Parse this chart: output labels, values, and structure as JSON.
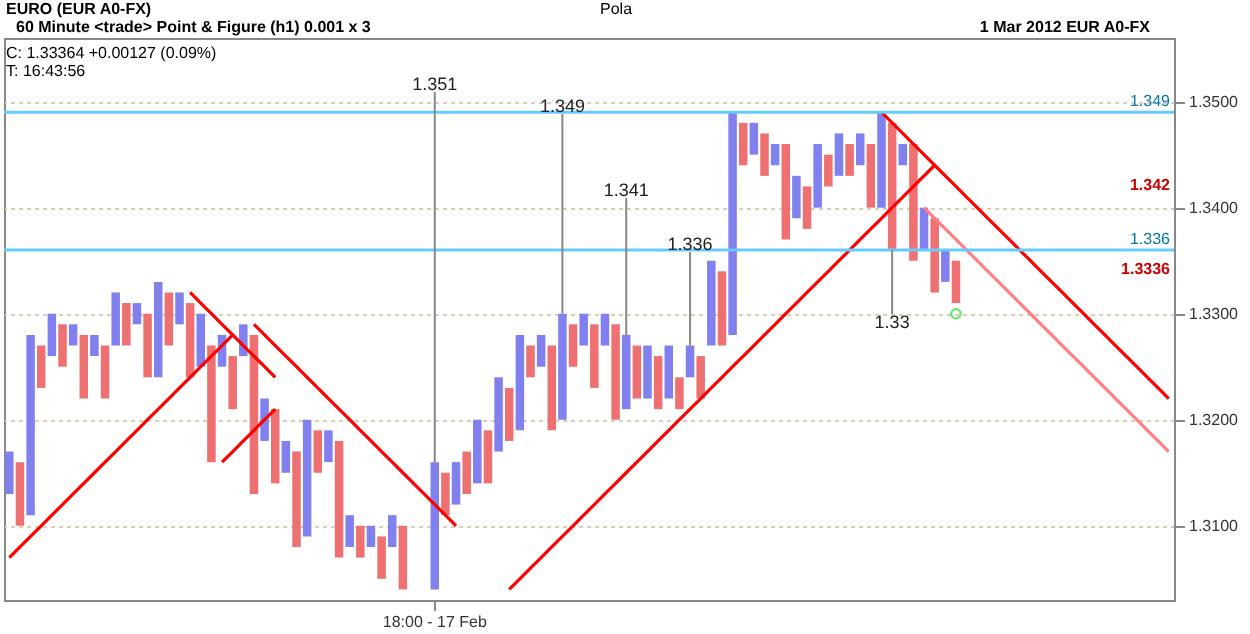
{
  "chart_data": {
    "type": "bar",
    "title": "EURO (EUR A0-FX)",
    "subtitle": "60 Minute <trade> Point & Figure (h1) 0.001 x 3",
    "annotations": [
      "Pola",
      "1 Mar 2012  EUR A0-FX",
      "C: 1.33364  +0.00127 (0.09%)",
      "T: 16:43:56",
      "1.351",
      "1.349",
      "1.341",
      "1.336",
      "1.33",
      "1.342",
      "1.3336"
    ],
    "categories": [
      null,
      null,
      null,
      null,
      null,
      null,
      null,
      null,
      null,
      null,
      null,
      null,
      null,
      null,
      null,
      null,
      null,
      null,
      null,
      null,
      null,
      null,
      null,
      null,
      null,
      null,
      null,
      null,
      null,
      null,
      null,
      null,
      null,
      null,
      null,
      null,
      null,
      null,
      null,
      null,
      "18:00 - 17 Feb",
      null,
      null,
      null,
      null,
      null,
      null,
      null,
      null,
      null,
      null,
      null,
      null,
      null,
      null,
      null,
      null,
      null,
      null,
      null,
      null,
      null,
      null,
      null,
      null,
      null,
      null,
      null,
      null,
      null,
      null,
      null,
      null,
      null,
      null,
      null,
      null,
      null,
      null,
      null,
      null,
      null,
      null,
      null,
      null,
      null,
      null,
      null,
      null,
      null,
      null,
      null,
      null,
      null,
      null,
      null,
      null,
      null,
      null,
      null,
      null,
      null,
      null,
      null,
      null,
      null,
      null,
      null,
      null,
      null
    ],
    "ylim": [
      1.303,
      1.356
    ],
    "yticks": [
      {
        "value": 1.31,
        "label": "1.3100"
      },
      {
        "value": 1.32,
        "label": "1.3200"
      },
      {
        "value": 1.33,
        "label": "1.3300"
      },
      {
        "value": 1.34,
        "label": "1.3400"
      },
      {
        "value": 1.35,
        "label": "1.3500"
      }
    ],
    "grid": "y",
    "ref_lines": [
      {
        "axis": "y",
        "value": 1.349,
        "label": "1.349",
        "color": "#66ccff"
      },
      {
        "axis": "y",
        "value": 1.336,
        "label": "1.336",
        "color": "#66ccff"
      }
    ],
    "series": [
      {
        "base": [
          1.313,
          1.31,
          1.311,
          1.323,
          1.326,
          1.325,
          1.327,
          1.322,
          1.326,
          1.322,
          1.327,
          1.327,
          1.329,
          1.324,
          1.324,
          1.327,
          1.329,
          1.324,
          1.325,
          1.316,
          1.325,
          1.321,
          1.326,
          1.313,
          1.318,
          1.314,
          1.315,
          1.308,
          1.309,
          1.315,
          1.316,
          1.307,
          1.308,
          1.307,
          1.308,
          1.305,
          1.308,
          1.304,
          null,
          null,
          1.304,
          1.311,
          1.312,
          1.313,
          1.314,
          1.314,
          1.317,
          1.318,
          1.319,
          1.324,
          1.325,
          1.319,
          1.32,
          1.325,
          1.327,
          1.323,
          1.327,
          1.32,
          1.321,
          1.322,
          1.322,
          1.321,
          1.322,
          1.321,
          1.324,
          1.322,
          1.327,
          1.327,
          1.328,
          1.344,
          1.345,
          1.343,
          1.344,
          1.337,
          1.339,
          1.338,
          1.34,
          1.342,
          1.343,
          1.343,
          1.344,
          1.34,
          1.34,
          1.336,
          1.344,
          1.335,
          1.336,
          1.332,
          1.333,
          1.331,
          null,
          null,
          null,
          null,
          null,
          null,
          null,
          null,
          null,
          null,
          null,
          null,
          null,
          null,
          null,
          null,
          null,
          null,
          null,
          null
        ],
        "values": [
          0.004,
          0.006,
          0.017,
          0.004,
          0.004,
          0.004,
          0.002,
          0.006,
          0.002,
          0.005,
          0.005,
          0.004,
          0.002,
          0.006,
          0.009,
          0.005,
          0.003,
          0.007,
          0.005,
          0.011,
          0.003,
          0.005,
          0.003,
          0.015,
          0.004,
          0.007,
          0.003,
          0.009,
          0.011,
          0.004,
          0.003,
          0.011,
          0.003,
          0.003,
          0.002,
          0.004,
          0.003,
          0.006,
          null,
          null,
          0.012,
          0.004,
          0.004,
          0.004,
          0.006,
          0.005,
          0.007,
          0.005,
          0.009,
          0.003,
          0.003,
          0.008,
          0.01,
          0.004,
          0.003,
          0.006,
          0.003,
          0.009,
          0.007,
          0.005,
          0.005,
          0.005,
          0.005,
          0.003,
          0.003,
          0.004,
          0.008,
          0.007,
          0.021,
          0.004,
          0.003,
          0.004,
          0.002,
          0.009,
          0.004,
          0.004,
          0.006,
          0.003,
          0.004,
          0.003,
          0.003,
          0.006,
          0.009,
          0.012,
          0.002,
          0.011,
          0.004,
          0.007,
          0.003,
          0.004,
          null,
          null,
          null,
          null,
          null,
          null,
          null,
          null,
          null,
          null,
          null,
          null,
          null,
          null,
          null,
          null,
          null,
          null,
          null,
          null
        ],
        "colors": [
          "#8080ee",
          "#ee7070",
          "#8080ee",
          "#ee7070",
          "#8080ee",
          "#ee7070",
          "#8080ee",
          "#ee7070",
          "#8080ee",
          "#ee7070",
          "#8080ee",
          "#ee7070",
          "#8080ee",
          "#ee7070",
          "#8080ee",
          "#ee7070",
          "#8080ee",
          "#ee7070",
          "#8080ee",
          "#ee7070",
          "#8080ee",
          "#ee7070",
          "#8080ee",
          "#ee7070",
          "#8080ee",
          "#ee7070",
          "#8080ee",
          "#ee7070",
          "#8080ee",
          "#ee7070",
          "#8080ee",
          "#ee7070",
          "#8080ee",
          "#ee7070",
          "#8080ee",
          "#ee7070",
          "#8080ee",
          "#ee7070",
          null,
          null,
          "#8080ee",
          "#ee7070",
          "#8080ee",
          "#ee7070",
          "#8080ee",
          "#ee7070",
          "#8080ee",
          "#ee7070",
          "#8080ee",
          "#ee7070",
          "#8080ee",
          "#ee7070",
          "#8080ee",
          "#ee7070",
          "#8080ee",
          "#ee7070",
          "#8080ee",
          "#ee7070",
          "#8080ee",
          "#ee7070",
          "#8080ee",
          "#ee7070",
          "#8080ee",
          "#ee7070",
          "#8080ee",
          "#ee7070",
          "#8080ee",
          "#ee7070",
          "#8080ee",
          "#ee7070",
          "#8080ee",
          "#ee7070",
          "#8080ee",
          "#ee7070",
          "#8080ee",
          "#ee7070",
          "#8080ee",
          "#ee7070",
          "#8080ee",
          "#ee7070",
          "#8080ee",
          "#ee7070",
          "#8080ee",
          "#ee7070",
          "#8080ee",
          "#ee7070",
          "#8080ee",
          "#ee7070",
          "#8080ee",
          "#ee7070",
          null,
          null,
          null,
          null,
          null,
          null,
          null,
          null,
          null,
          null,
          null,
          null,
          null,
          null,
          null,
          null,
          null,
          null,
          null,
          null
        ]
      },
      {
        "type": "scatter",
        "color": "#33dd33",
        "values": [
          null,
          null,
          null,
          null,
          null,
          null,
          null,
          null,
          null,
          null,
          null,
          null,
          null,
          null,
          null,
          null,
          null,
          null,
          null,
          null,
          null,
          null,
          null,
          null,
          null,
          null,
          null,
          null,
          null,
          null,
          null,
          null,
          null,
          null,
          null,
          null,
          null,
          null,
          null,
          null,
          null,
          null,
          null,
          null,
          null,
          null,
          null,
          null,
          null,
          null,
          null,
          null,
          null,
          null,
          null,
          null,
          null,
          null,
          null,
          null,
          null,
          null,
          null,
          null,
          null,
          null,
          null,
          null,
          null,
          null,
          null,
          null,
          null,
          null,
          null,
          null,
          null,
          null,
          null,
          null,
          null,
          null,
          null,
          null,
          null,
          null,
          null,
          null,
          null,
          1.33,
          null,
          null,
          null,
          null,
          null,
          null,
          null,
          null,
          null,
          null,
          null,
          null,
          null,
          null,
          null,
          null,
          null,
          null,
          null,
          null
        ]
      },
      {
        "type": "line",
        "color": "#ff0000",
        "values": [
          1.307,
          1.308,
          1.309,
          1.31,
          1.311,
          1.312,
          1.313,
          1.314,
          1.315,
          1.316,
          1.317,
          1.318,
          1.319,
          1.32,
          1.321,
          1.322,
          1.323,
          1.324,
          1.325,
          1.326,
          1.327,
          1.328,
          null,
          null,
          null,
          null,
          null,
          null,
          null,
          null,
          null,
          null,
          null,
          null,
          null,
          null,
          null,
          null,
          null,
          null,
          null,
          null,
          null,
          null,
          null,
          null,
          null,
          null,
          null,
          null,
          null,
          null,
          null,
          null,
          null,
          null,
          null,
          null,
          null,
          null,
          null,
          null,
          null,
          null,
          null,
          null,
          null,
          null,
          null,
          null,
          null,
          null,
          null,
          null,
          null,
          null,
          null,
          null,
          null,
          null,
          null,
          null,
          null,
          null,
          null,
          null,
          null,
          null,
          null,
          null,
          null,
          null,
          null,
          null,
          null,
          null,
          null,
          null,
          null,
          null,
          null,
          null,
          null,
          null,
          null,
          null,
          null,
          null,
          null,
          null
        ]
      },
      {
        "type": "line",
        "color": "#ff0000",
        "values": [
          null,
          null,
          null,
          null,
          null,
          null,
          null,
          null,
          null,
          null,
          null,
          null,
          null,
          null,
          null,
          null,
          null,
          null,
          null,
          null,
          null,
          null,
          null,
          null,
          null,
          null,
          null,
          null,
          null,
          null,
          null,
          null,
          null,
          null,
          null,
          null,
          null,
          null,
          null,
          null,
          null,
          null,
          null,
          null,
          null,
          null,
          null,
          1.304,
          1.305,
          1.306,
          1.307,
          1.308,
          1.309,
          1.31,
          1.311,
          1.312,
          1.313,
          1.314,
          1.315,
          1.316,
          1.317,
          1.318,
          1.319,
          1.32,
          1.321,
          1.322,
          1.323,
          1.324,
          1.325,
          1.326,
          1.327,
          1.328,
          1.329,
          1.33,
          1.331,
          1.332,
          1.333,
          1.334,
          1.335,
          1.336,
          1.337,
          1.338,
          1.339,
          1.34,
          1.341,
          1.342,
          1.343,
          1.344,
          null,
          null,
          null,
          null,
          null,
          null,
          null,
          null,
          null,
          null,
          null,
          null,
          null,
          null,
          null,
          null,
          null,
          null,
          null,
          null,
          null,
          null
        ]
      },
      {
        "type": "line",
        "color": "#ff0000",
        "values": [
          null,
          null,
          null,
          null,
          null,
          null,
          null,
          null,
          null,
          null,
          null,
          null,
          null,
          null,
          null,
          null,
          null,
          1.332,
          1.331,
          1.33,
          1.329,
          1.328,
          1.327,
          1.326,
          1.325,
          1.324,
          null,
          null,
          null,
          null,
          null,
          null,
          null,
          null,
          null,
          null,
          null,
          null,
          null,
          null,
          null,
          null,
          null,
          null,
          null,
          null,
          null,
          null,
          null,
          null,
          null,
          null,
          null,
          null,
          null,
          null,
          null,
          null,
          null,
          null,
          null,
          null,
          null,
          null,
          null,
          null,
          null,
          null,
          null,
          null,
          null,
          null,
          null,
          null,
          null,
          null,
          null,
          null,
          null,
          null,
          null,
          null,
          null,
          null,
          null,
          null,
          null,
          null,
          null,
          null,
          null,
          null,
          null,
          null,
          null,
          null,
          null,
          null,
          null,
          null,
          null,
          null,
          null,
          null,
          null,
          null,
          null,
          null,
          null,
          null
        ]
      },
      {
        "type": "line",
        "color": "#ff0000",
        "values": [
          null,
          null,
          null,
          null,
          null,
          null,
          null,
          null,
          null,
          null,
          null,
          null,
          null,
          null,
          null,
          null,
          null,
          null,
          null,
          null,
          null,
          null,
          null,
          1.329,
          1.328,
          1.327,
          1.326,
          1.325,
          1.324,
          1.323,
          1.322,
          1.321,
          1.32,
          1.319,
          1.318,
          1.317,
          1.316,
          1.315,
          1.314,
          1.313,
          1.312,
          1.311,
          1.31,
          null,
          null,
          null,
          null,
          null,
          null,
          null,
          null,
          null,
          null,
          null,
          null,
          null,
          null,
          null,
          null,
          null,
          null,
          null,
          null,
          null,
          null,
          null,
          null,
          null,
          null,
          null,
          null,
          null,
          null,
          null,
          null,
          null,
          null,
          null,
          null,
          null,
          null,
          null,
          null,
          null,
          null,
          null,
          null,
          null,
          null,
          null,
          null,
          null,
          null,
          null,
          null,
          null,
          null,
          null,
          null,
          null,
          null,
          null,
          null,
          null,
          null,
          null,
          null,
          null,
          null,
          null
        ]
      },
      {
        "type": "line",
        "color": "#ff0000",
        "values": [
          null,
          null,
          null,
          null,
          null,
          null,
          null,
          null,
          null,
          null,
          null,
          null,
          null,
          null,
          null,
          null,
          null,
          null,
          null,
          null,
          1.316,
          1.317,
          1.318,
          1.319,
          1.32,
          1.321,
          null,
          null,
          null,
          null,
          null,
          null,
          null,
          null,
          null,
          null,
          null,
          null,
          null,
          null,
          null,
          null,
          null,
          null,
          null,
          null,
          null,
          null,
          null,
          null,
          null,
          null,
          null,
          null,
          null,
          null,
          null,
          null,
          null,
          null,
          null,
          null,
          null,
          null,
          null,
          null,
          null,
          null,
          null,
          null,
          null,
          null,
          null,
          null,
          null,
          null,
          null,
          null,
          null,
          null,
          null,
          null,
          null,
          null,
          null,
          null,
          null,
          null,
          null,
          null,
          null,
          null,
          null,
          null,
          null,
          null,
          null,
          null,
          null,
          null,
          null,
          null,
          null,
          null,
          null,
          null,
          null,
          null,
          null,
          null
        ]
      },
      {
        "type": "line",
        "color": "#ff0000",
        "values": [
          null,
          null,
          null,
          null,
          null,
          null,
          null,
          null,
          null,
          null,
          null,
          null,
          null,
          null,
          null,
          null,
          null,
          null,
          null,
          null,
          null,
          null,
          null,
          null,
          null,
          null,
          null,
          null,
          null,
          null,
          null,
          null,
          null,
          null,
          null,
          null,
          null,
          null,
          null,
          null,
          null,
          null,
          null,
          null,
          null,
          null,
          null,
          null,
          null,
          null,
          null,
          null,
          null,
          null,
          null,
          null,
          null,
          null,
          null,
          null,
          null,
          null,
          null,
          null,
          null,
          null,
          null,
          null,
          null,
          null,
          null,
          null,
          null,
          null,
          null,
          null,
          null,
          null,
          null,
          null,
          null,
          null,
          1.349,
          1.348,
          1.347,
          1.346,
          1.345,
          1.344,
          1.343,
          1.342,
          1.341,
          1.34,
          1.339,
          1.338,
          1.337,
          1.336,
          1.335,
          1.334,
          1.333,
          1.332,
          1.331,
          1.33,
          1.329,
          1.328,
          1.327,
          1.326,
          1.325,
          1.324,
          1.323,
          1.322
        ]
      },
      {
        "type": "line",
        "color": "#ff8080",
        "values": [
          null,
          null,
          null,
          null,
          null,
          null,
          null,
          null,
          null,
          null,
          null,
          null,
          null,
          null,
          null,
          null,
          null,
          null,
          null,
          null,
          null,
          null,
          null,
          null,
          null,
          null,
          null,
          null,
          null,
          null,
          null,
          null,
          null,
          null,
          null,
          null,
          null,
          null,
          null,
          null,
          null,
          null,
          null,
          null,
          null,
          null,
          null,
          null,
          null,
          null,
          null,
          null,
          null,
          null,
          null,
          null,
          null,
          null,
          null,
          null,
          null,
          null,
          null,
          null,
          null,
          null,
          null,
          null,
          null,
          null,
          null,
          null,
          null,
          null,
          null,
          null,
          null,
          null,
          null,
          null,
          null,
          null,
          null,
          null,
          null,
          null,
          1.34,
          1.339,
          1.338,
          1.337,
          1.336,
          1.335,
          1.334,
          1.333,
          1.332,
          1.331,
          1.33,
          1.329,
          1.328,
          1.327,
          1.326,
          1.325,
          1.324,
          1.323,
          1.322,
          1.321,
          1.32,
          1.319,
          1.318,
          1.317
        ]
      }
    ]
  }
}
